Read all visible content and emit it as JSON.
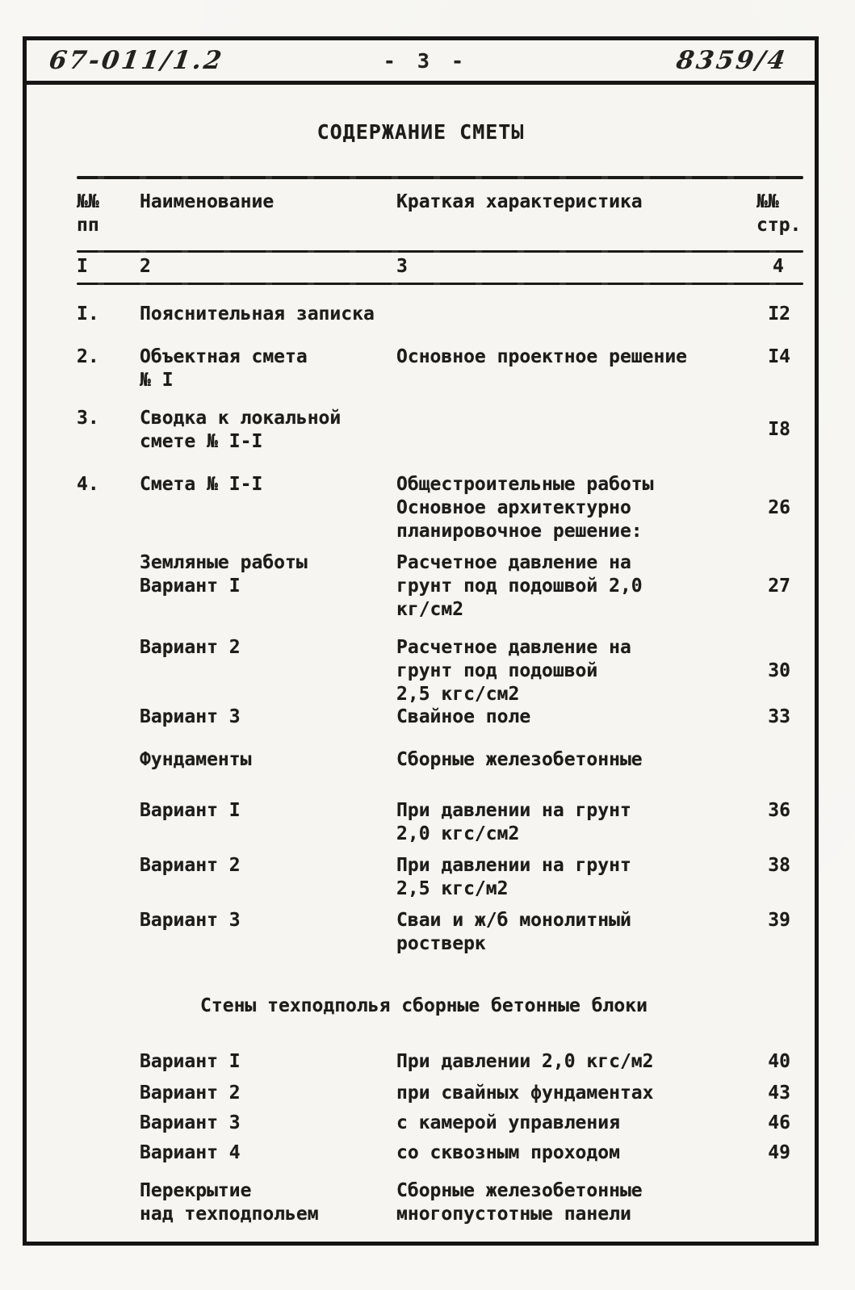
{
  "ink_color": "#1d1c1a",
  "paper_color": "#f6f5f1",
  "page_header": {
    "left_code": "67-011/1.2",
    "page_number": "- 3 -",
    "right_code": "8359/4"
  },
  "title": "СОДЕРЖАНИЕ СМЕТЫ",
  "table": {
    "headers": {
      "num": "№№\nпп",
      "name": "Наименование",
      "desc": "Краткая характеристика",
      "page": "№№\nстр."
    },
    "column_numbers": {
      "c1": "I",
      "c2": "2",
      "c3": "3",
      "c4": "4"
    },
    "rows": [
      {
        "num": "I.",
        "name": "Пояснительная записка",
        "desc": "",
        "page": "I2"
      },
      {
        "num": "2.",
        "name": "Объектная смета\n№ I",
        "desc": "Основное проектное решение",
        "page": "I4"
      },
      {
        "num": "3.",
        "name": "Сводка к локальной\nсмете № I-I",
        "desc": "",
        "page": "I8"
      },
      {
        "num": "4.",
        "name": "Смета № I-I",
        "desc": "Общестроительные работы\nОсновное архитектурно\nпланировочное решение:",
        "page": "26"
      },
      {
        "num": "",
        "name": "Земляные работы\nВариант I",
        "desc": "Расчетное давление на\nгрунт под подошвой 2,0\nкг/см2",
        "page": "27"
      },
      {
        "num": "",
        "name": "Вариант 2",
        "desc": "Расчетное давление на\nгрунт под подошвой\n2,5 кгс/см2",
        "page": "30"
      },
      {
        "num": "",
        "name": "Вариант 3",
        "desc": "Свайное поле",
        "page": "33"
      },
      {
        "num": "",
        "name": "Фундаменты",
        "desc": "Сборные железобетонные",
        "page": ""
      },
      {
        "num": "",
        "name": "Вариант I",
        "desc": "При давлении на грунт\n2,0 кгс/см2",
        "page": "36"
      },
      {
        "num": "",
        "name": "Вариант 2",
        "desc": "При давлении на грунт\n2,5 кгс/м2",
        "page": "38"
      },
      {
        "num": "",
        "name": "Вариант 3",
        "desc": "Сваи и ж/б монолитный\nростверк",
        "page": "39"
      },
      {
        "section": "Стены техподполья сборные бетонные блоки"
      },
      {
        "num": "",
        "name": "Вариант I",
        "desc": "При давлении 2,0 кгс/м2",
        "page": "40"
      },
      {
        "num": "",
        "name": "Вариант 2",
        "desc": "при свайных фундаментах",
        "page": "43"
      },
      {
        "num": "",
        "name": "Вариант 3",
        "desc": "с камерой управления",
        "page": "46"
      },
      {
        "num": "",
        "name": "Вариант 4",
        "desc": "со сквозным проходом",
        "page": "49"
      },
      {
        "num": "",
        "name": "Перекрытие\nнад техподпольем",
        "desc": "Сборные железобетонные\nмногопустотные панели",
        "page": ""
      }
    ]
  }
}
